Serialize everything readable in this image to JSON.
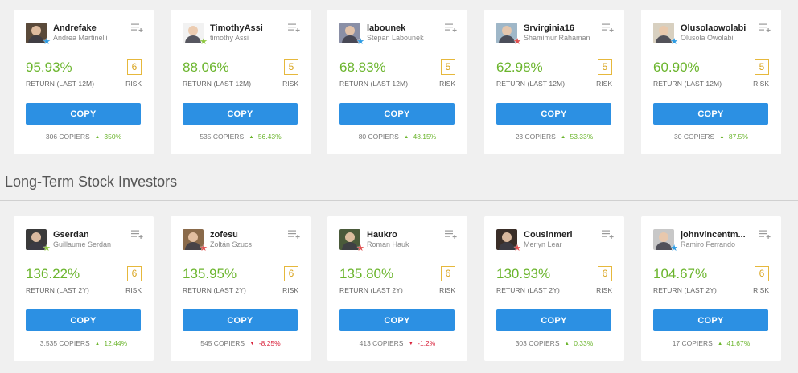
{
  "section_title": "Long-Term Stock Investors",
  "labels": {
    "copy": "COPY",
    "risk": "RISK",
    "copiers_suffix": "COPIERS"
  },
  "rows": [
    {
      "return_label": "RETURN (LAST 12M)",
      "cards": [
        {
          "username": "Andrefake",
          "fullname": "Andrea Martinelli",
          "return": "95.93%",
          "risk": "6",
          "copiers": "306",
          "change": "350%",
          "direction": "up",
          "star_color": "#2c9be3",
          "avatar_bg": "#5a4a3a"
        },
        {
          "username": "TimothyAssi",
          "fullname": "timothy Assi",
          "return": "88.06%",
          "risk": "5",
          "copiers": "535",
          "change": "56.43%",
          "direction": "up",
          "star_color": "#8cc63f",
          "avatar_bg": "#f2f2f2"
        },
        {
          "username": "labounek",
          "fullname": "Stepan Labounek",
          "return": "68.83%",
          "risk": "5",
          "copiers": "80",
          "change": "48.15%",
          "direction": "up",
          "star_color": "#2c9be3",
          "avatar_bg": "#8a8fa6"
        },
        {
          "username": "Srvirginia16",
          "fullname": "Shamimur Rahaman",
          "return": "62.98%",
          "risk": "5",
          "copiers": "23",
          "change": "53.33%",
          "direction": "up",
          "star_color": "#e05050",
          "avatar_bg": "#9fb7c8"
        },
        {
          "username": "Olusolaowolabi",
          "fullname": "Olusola Owolabi",
          "return": "60.90%",
          "risk": "5",
          "copiers": "30",
          "change": "87.5%",
          "direction": "up",
          "star_color": "#2c9be3",
          "avatar_bg": "#d8d0c0"
        }
      ]
    },
    {
      "return_label": "RETURN (LAST 2Y)",
      "cards": [
        {
          "username": "Gserdan",
          "fullname": "Guillaume Serdan",
          "return": "136.22%",
          "risk": "6",
          "copiers": "3,535",
          "change": "12.44%",
          "direction": "up",
          "star_color": "#8cc63f",
          "avatar_bg": "#3a3a3a"
        },
        {
          "username": "zofesu",
          "fullname": "Zoltán Szucs",
          "return": "135.95%",
          "risk": "6",
          "copiers": "545",
          "change": "-8.25%",
          "direction": "down",
          "star_color": "#e05050",
          "avatar_bg": "#8a6a4a"
        },
        {
          "username": "Haukro",
          "fullname": "Roman Hauk",
          "return": "135.80%",
          "risk": "6",
          "copiers": "413",
          "change": "-1.2%",
          "direction": "down",
          "star_color": "#e05050",
          "avatar_bg": "#4a5a3a"
        },
        {
          "username": "Cousinmerl",
          "fullname": "Merlyn Lear",
          "return": "130.93%",
          "risk": "6",
          "copiers": "303",
          "change": "0.33%",
          "direction": "up",
          "star_color": "#e05050",
          "avatar_bg": "#3a2e28"
        },
        {
          "username": "johnvincentm...",
          "fullname": "Ramiro Ferrando",
          "return": "104.67%",
          "risk": "6",
          "copiers": "17",
          "change": "41.67%",
          "direction": "up",
          "star_color": "#2c9be3",
          "avatar_bg": "#c8c8c8"
        }
      ]
    }
  ],
  "colors": {
    "accent": "#2c90e3",
    "positive": "#6bb52d",
    "negative": "#d9243d",
    "risk_border": "#e6b83c"
  },
  "icons": {
    "menu": "add-to-list-icon",
    "star": "star-icon",
    "up": "triangle-up-icon",
    "down": "triangle-down-icon"
  }
}
